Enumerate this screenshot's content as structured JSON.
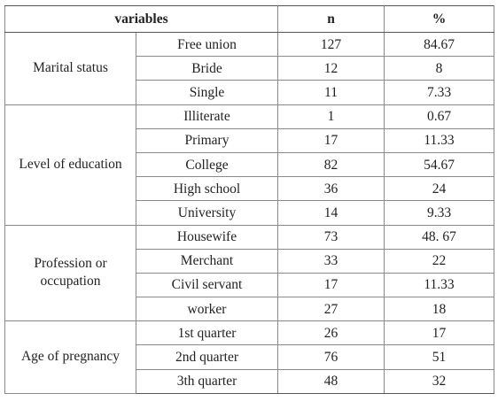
{
  "table": {
    "headers": {
      "variables": "variables",
      "n": "n",
      "percent": "%"
    },
    "groups": [
      {
        "label": "Marital status",
        "rows": [
          {
            "category": "Free union",
            "n": "127",
            "percent": "84.67"
          },
          {
            "category": "Bride",
            "n": "12",
            "percent": "8"
          },
          {
            "category": "Single",
            "n": "11",
            "percent": "7.33"
          }
        ]
      },
      {
        "label": "Level of education",
        "rows": [
          {
            "category": "Illiterate",
            "n": "1",
            "percent": "0.67"
          },
          {
            "category": "Primary",
            "n": "17",
            "percent": "11.33"
          },
          {
            "category": "College",
            "n": "82",
            "percent": "54.67"
          },
          {
            "category": "High school",
            "n": "36",
            "percent": "24"
          },
          {
            "category": "University",
            "n": "14",
            "percent": "9.33"
          }
        ]
      },
      {
        "label": "Profession or occupation",
        "rows": [
          {
            "category": "Housewife",
            "n": "73",
            "percent": "48. 67"
          },
          {
            "category": "Merchant",
            "n": "33",
            "percent": "22"
          },
          {
            "category": "Civil servant",
            "n": "17",
            "percent": "11.33"
          },
          {
            "category": "worker",
            "n": "27",
            "percent": "18"
          }
        ]
      },
      {
        "label": "Age of pregnancy",
        "rows": [
          {
            "category": "1st quarter",
            "n": "26",
            "percent": "17"
          },
          {
            "category": "2nd quarter",
            "n": "76",
            "percent": "51"
          },
          {
            "category": "3th quarter",
            "n": "48",
            "percent": "32"
          }
        ]
      }
    ]
  }
}
